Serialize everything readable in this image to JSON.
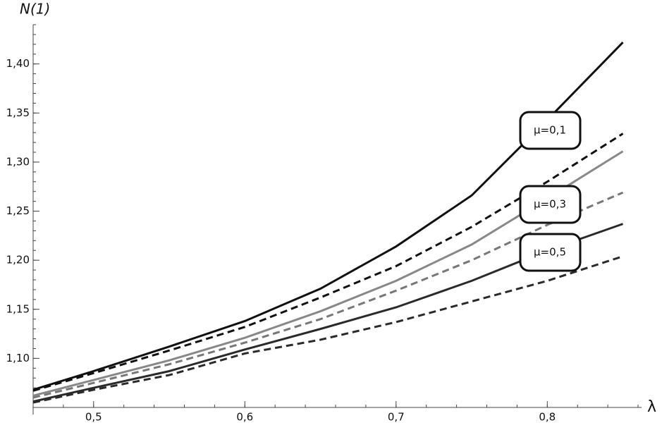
{
  "chart_data": {
    "type": "line",
    "x_label": "λ",
    "y_label": "N(1)",
    "x": [
      0.46,
      0.5,
      0.55,
      0.6,
      0.65,
      0.7,
      0.75,
      0.8,
      0.85
    ],
    "series": [
      {
        "color": "#111111",
        "dashed": false,
        "values": [
          1.068,
          1.087,
          1.112,
          1.138,
          1.171,
          1.214,
          1.266,
          1.343,
          1.422
        ]
      },
      {
        "color": "#111111",
        "dashed": true,
        "values": [
          1.067,
          1.085,
          1.108,
          1.132,
          1.162,
          1.194,
          1.234,
          1.28,
          1.329
        ]
      },
      {
        "color": "#888888",
        "dashed": false,
        "values": [
          1.062,
          1.078,
          1.098,
          1.121,
          1.148,
          1.179,
          1.216,
          1.263,
          1.311
        ]
      },
      {
        "color": "#777777",
        "dashed": true,
        "values": [
          1.06,
          1.075,
          1.094,
          1.116,
          1.14,
          1.169,
          1.2,
          1.236,
          1.269
        ]
      },
      {
        "color": "#2a2a2a",
        "dashed": false,
        "values": [
          1.056,
          1.07,
          1.087,
          1.109,
          1.13,
          1.152,
          1.179,
          1.21,
          1.237
        ]
      },
      {
        "color": "#2a2a2a",
        "dashed": true,
        "values": [
          1.055,
          1.068,
          1.083,
          1.105,
          1.119,
          1.137,
          1.158,
          1.179,
          1.204
        ]
      }
    ],
    "annotations": [
      "μ=0,1",
      "μ=0,3",
      "μ=0,5"
    ],
    "xlim": [
      0.46,
      0.86
    ],
    "ylim": [
      1.05,
      1.44
    ],
    "xticks": [
      {
        "value": 0.5,
        "label": "0,5"
      },
      {
        "value": 0.6,
        "label": "0,6"
      },
      {
        "value": 0.7,
        "label": "0,7"
      },
      {
        "value": 0.8,
        "label": "0,8"
      }
    ],
    "yticks": [
      {
        "value": 1.1,
        "label": "1,10"
      },
      {
        "value": 1.15,
        "label": "1,15"
      },
      {
        "value": 1.2,
        "label": "1,20"
      },
      {
        "value": 1.25,
        "label": "1,25"
      },
      {
        "value": 1.3,
        "label": "1,30"
      },
      {
        "value": 1.35,
        "label": "1,35"
      },
      {
        "value": 1.4,
        "label": "1,40"
      }
    ],
    "grid": false
  }
}
